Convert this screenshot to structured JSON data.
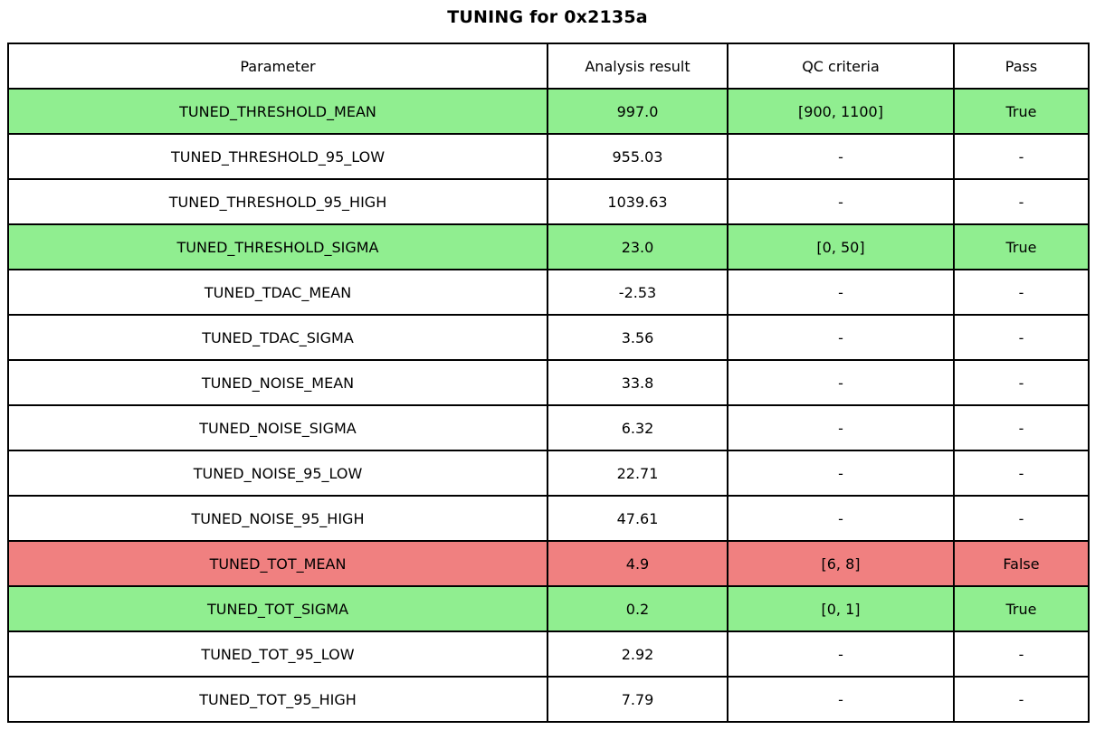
{
  "colors": {
    "pass": "#90ee90",
    "fail": "#f08080"
  },
  "chart_data": {
    "type": "table",
    "title": "TUNING for 0x2135a",
    "columns": [
      "Parameter",
      "Analysis result",
      "QC criteria",
      "Pass"
    ],
    "rows": [
      {
        "param": "TUNED_THRESHOLD_MEAN",
        "result": "997.0",
        "qc": "[900, 1100]",
        "pass": "True",
        "status": "pass"
      },
      {
        "param": "TUNED_THRESHOLD_95_LOW",
        "result": "955.03",
        "qc": "-",
        "pass": "-",
        "status": "none"
      },
      {
        "param": "TUNED_THRESHOLD_95_HIGH",
        "result": "1039.63",
        "qc": "-",
        "pass": "-",
        "status": "none"
      },
      {
        "param": "TUNED_THRESHOLD_SIGMA",
        "result": "23.0",
        "qc": "[0, 50]",
        "pass": "True",
        "status": "pass"
      },
      {
        "param": "TUNED_TDAC_MEAN",
        "result": "-2.53",
        "qc": "-",
        "pass": "-",
        "status": "none"
      },
      {
        "param": "TUNED_TDAC_SIGMA",
        "result": "3.56",
        "qc": "-",
        "pass": "-",
        "status": "none"
      },
      {
        "param": "TUNED_NOISE_MEAN",
        "result": "33.8",
        "qc": "-",
        "pass": "-",
        "status": "none"
      },
      {
        "param": "TUNED_NOISE_SIGMA",
        "result": "6.32",
        "qc": "-",
        "pass": "-",
        "status": "none"
      },
      {
        "param": "TUNED_NOISE_95_LOW",
        "result": "22.71",
        "qc": "-",
        "pass": "-",
        "status": "none"
      },
      {
        "param": "TUNED_NOISE_95_HIGH",
        "result": "47.61",
        "qc": "-",
        "pass": "-",
        "status": "none"
      },
      {
        "param": "TUNED_TOT_MEAN",
        "result": "4.9",
        "qc": "[6, 8]",
        "pass": "False",
        "status": "fail"
      },
      {
        "param": "TUNED_TOT_SIGMA",
        "result": "0.2",
        "qc": "[0, 1]",
        "pass": "True",
        "status": "pass"
      },
      {
        "param": "TUNED_TOT_95_LOW",
        "result": "2.92",
        "qc": "-",
        "pass": "-",
        "status": "none"
      },
      {
        "param": "TUNED_TOT_95_HIGH",
        "result": "7.79",
        "qc": "-",
        "pass": "-",
        "status": "none"
      }
    ]
  }
}
